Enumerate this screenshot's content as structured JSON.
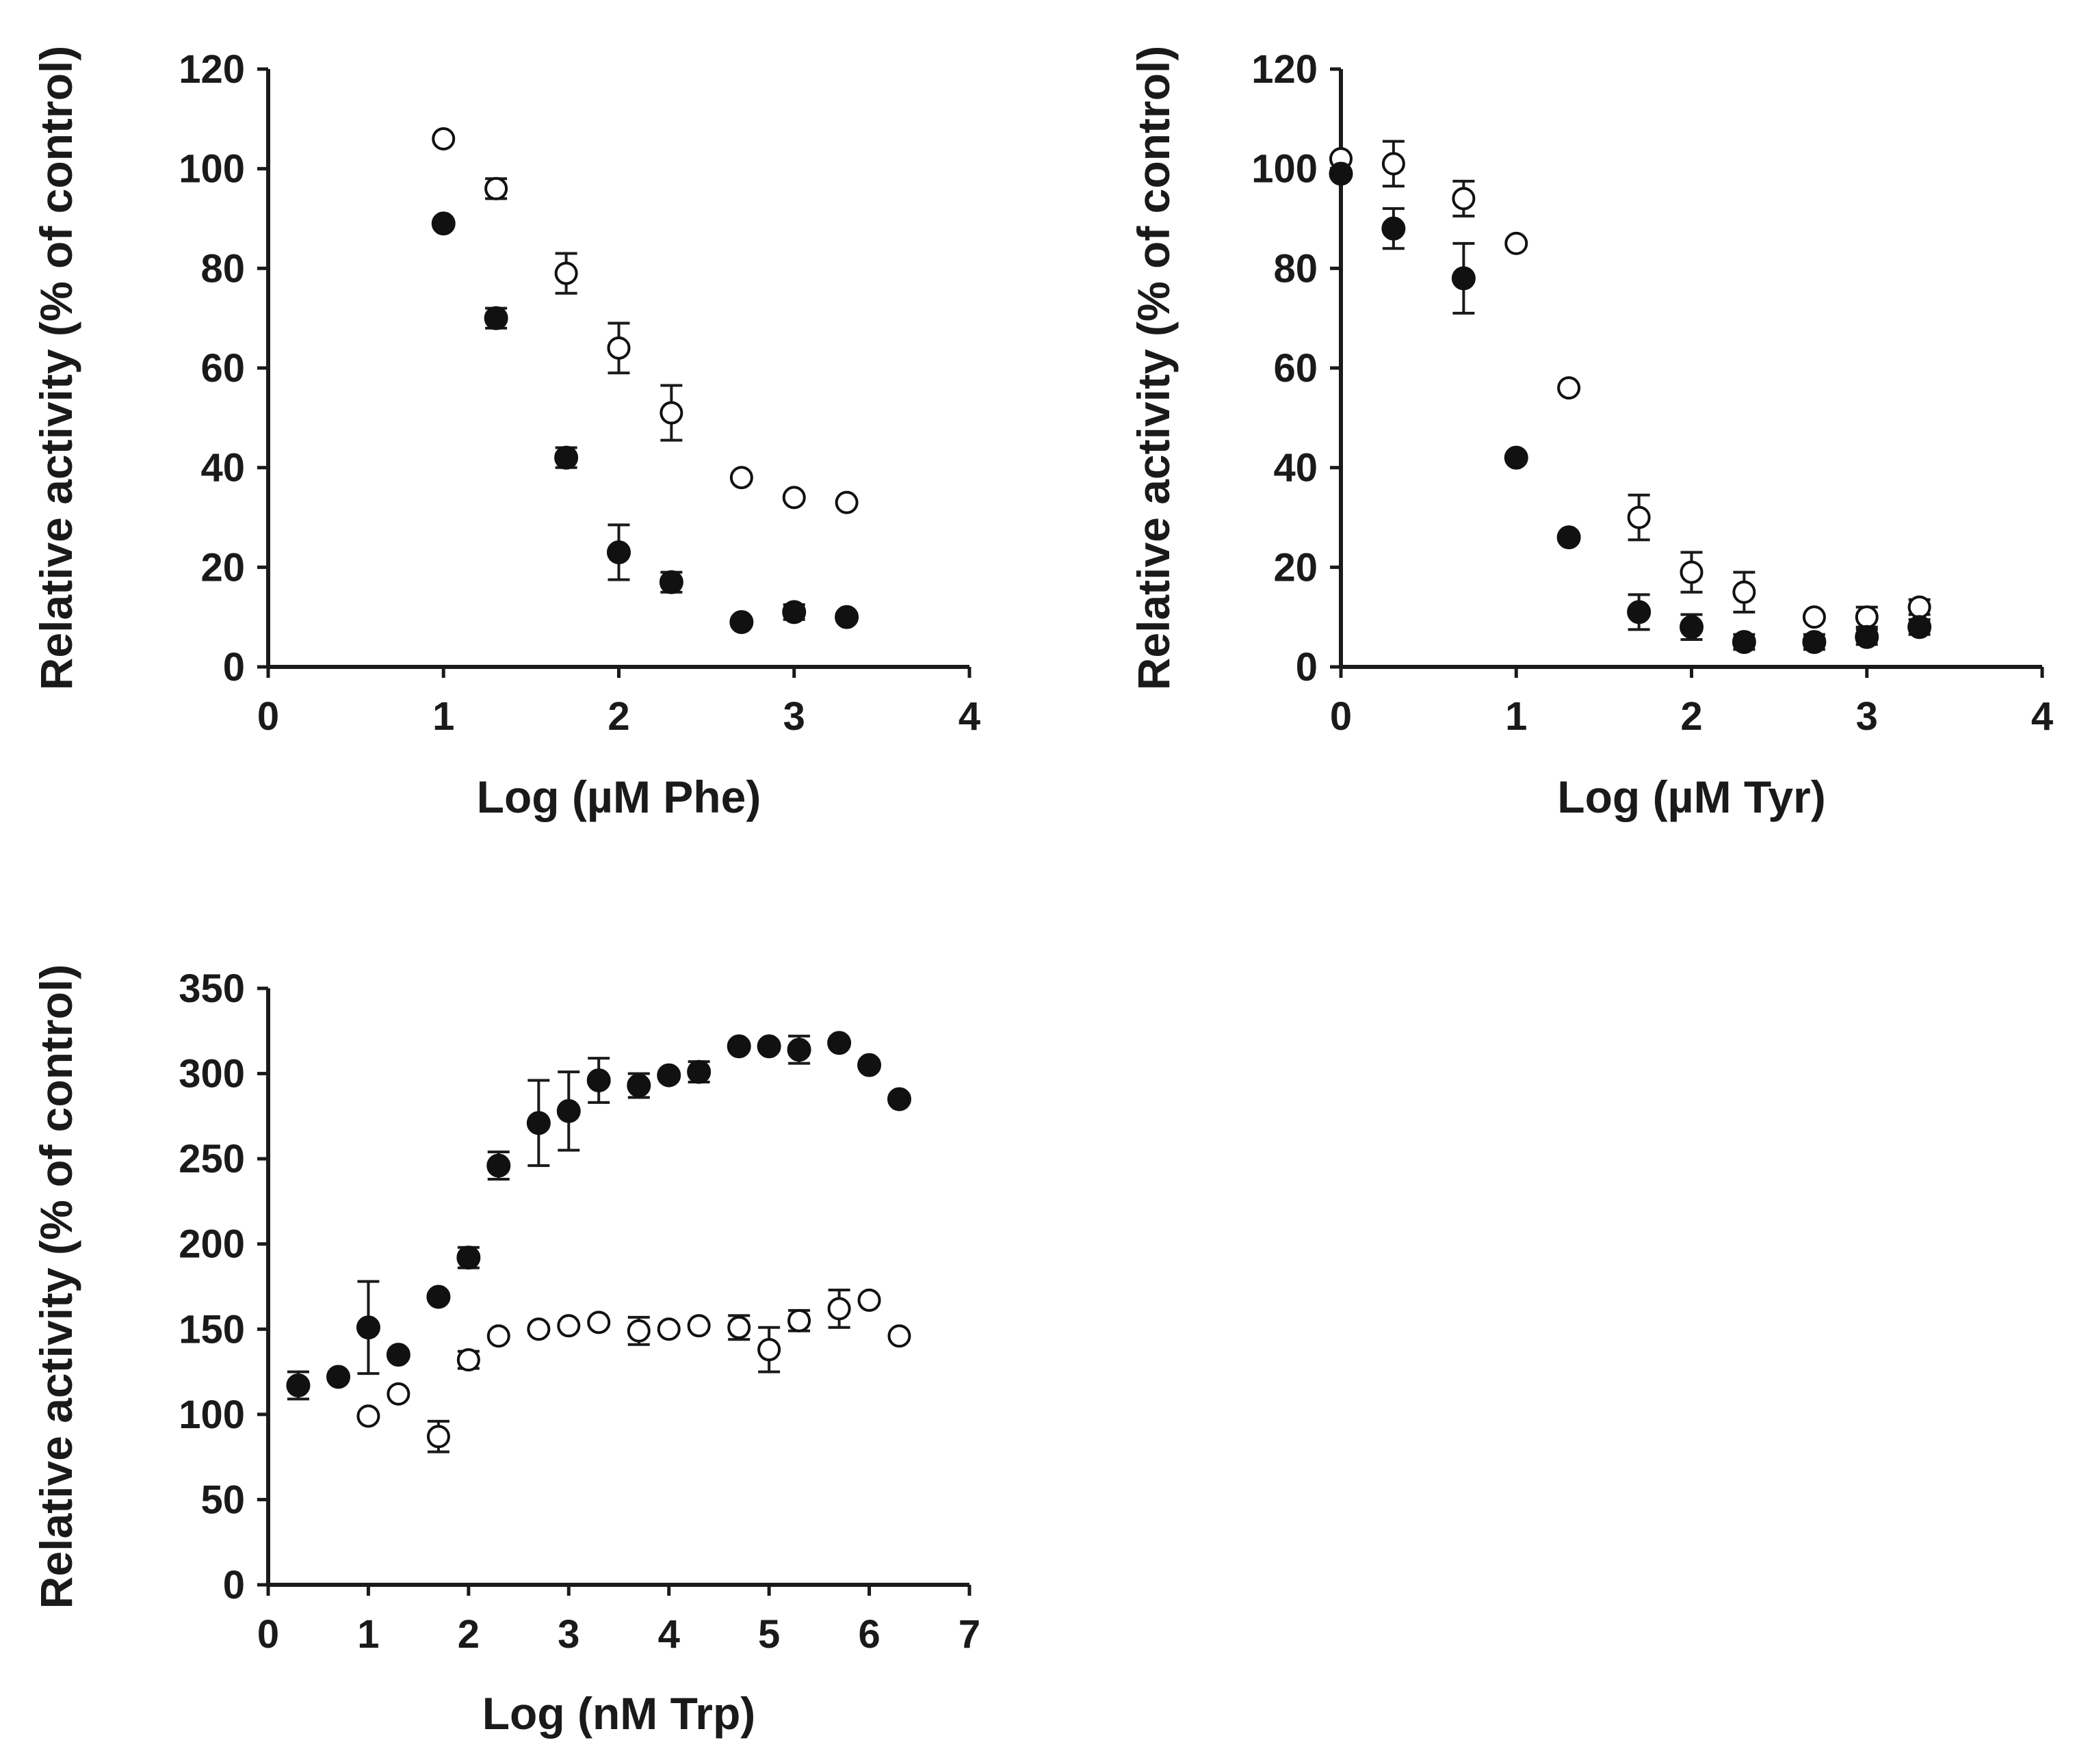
{
  "chart_data": [
    {
      "type": "scatter",
      "id": "phe",
      "xlabel": "Log (µM Phe)",
      "ylabel": "Relative activity (% of control)",
      "xlim": [
        0,
        4
      ],
      "ylim": [
        0,
        120
      ],
      "xticks": [
        0,
        1,
        2,
        3,
        4
      ],
      "yticks": [
        0,
        20,
        40,
        60,
        80,
        100,
        120
      ],
      "series": [
        {
          "name": "filled",
          "marker": "filled-circle",
          "x": [
            1,
            1.3,
            1.7,
            2,
            2.3,
            2.7,
            3,
            3.3
          ],
          "y": [
            89,
            70,
            42,
            23,
            17,
            9,
            11,
            10
          ],
          "err": [
            0,
            2,
            2,
            5.5,
            2,
            0,
            1.5,
            0
          ]
        },
        {
          "name": "open",
          "marker": "open-circle",
          "x": [
            1,
            1.3,
            1.7,
            2,
            2.3,
            2.7,
            3,
            3.3
          ],
          "y": [
            106,
            96,
            79,
            64,
            51,
            38,
            34,
            33
          ],
          "err": [
            0,
            2,
            4,
            5,
            5.5,
            0,
            0,
            0
          ]
        }
      ]
    },
    {
      "type": "scatter",
      "id": "tyr",
      "xlabel": "Log (µM Tyr)",
      "ylabel": "Relative activity (% of control)",
      "xlim": [
        0,
        4
      ],
      "ylim": [
        0,
        120
      ],
      "xticks": [
        0,
        1,
        2,
        3,
        4
      ],
      "yticks": [
        0,
        20,
        40,
        60,
        80,
        100,
        120
      ],
      "series": [
        {
          "name": "filled",
          "marker": "filled-circle",
          "x": [
            0,
            0.3,
            0.7,
            1,
            1.3,
            1.7,
            2,
            2.3,
            2.7,
            3,
            3.3
          ],
          "y": [
            99,
            88,
            78,
            42,
            26,
            11,
            8,
            5,
            5,
            6,
            8
          ],
          "err": [
            0,
            4,
            7,
            0,
            0,
            3.5,
            2.5,
            1.5,
            1.5,
            1.5,
            1.5
          ]
        },
        {
          "name": "open",
          "marker": "open-circle",
          "x": [
            0,
            0.3,
            0.7,
            1,
            1.3,
            1.7,
            2,
            2.3,
            2.7,
            3,
            3.3
          ],
          "y": [
            102,
            101,
            94,
            85,
            56,
            30,
            19,
            15,
            10,
            10,
            12
          ],
          "err": [
            0,
            4.5,
            3.5,
            0,
            0,
            4.5,
            4,
            4,
            0,
            2,
            1.5
          ]
        }
      ]
    },
    {
      "type": "scatter",
      "id": "trp",
      "xlabel": "Log (nM Trp)",
      "ylabel": "Relative activity (% of control)",
      "xlim": [
        0,
        7
      ],
      "ylim": [
        0,
        350
      ],
      "xticks": [
        0,
        1,
        2,
        3,
        4,
        5,
        6,
        7
      ],
      "yticks": [
        0,
        50,
        100,
        150,
        200,
        250,
        300,
        350
      ],
      "series": [
        {
          "name": "filled",
          "marker": "filled-circle",
          "x": [
            0.3,
            0.7,
            1,
            1.3,
            1.7,
            2,
            2.3,
            2.7,
            3,
            3.3,
            3.7,
            4,
            4.3,
            4.7,
            5,
            5.3,
            5.7,
            6,
            6.3
          ],
          "y": [
            117,
            122,
            151,
            135,
            169,
            192,
            246,
            271,
            278,
            296,
            293,
            299,
            301,
            316,
            316,
            314,
            318,
            305,
            285
          ],
          "err": [
            8,
            0,
            27,
            0,
            0,
            6,
            8,
            25,
            23,
            13,
            7,
            0,
            6,
            0,
            0,
            8,
            0,
            0,
            0
          ]
        },
        {
          "name": "open",
          "marker": "open-circle",
          "x": [
            1,
            1.3,
            1.7,
            2,
            2.3,
            2.7,
            3,
            3.3,
            3.7,
            4,
            4.3,
            4.7,
            5,
            5.3,
            5.7,
            6,
            6.3
          ],
          "y": [
            99,
            112,
            87,
            132,
            146,
            150,
            152,
            154,
            149,
            150,
            152,
            151,
            138,
            155,
            162,
            167,
            146
          ],
          "err": [
            0,
            0,
            9,
            5,
            0,
            0,
            0,
            0,
            8,
            0,
            0,
            7,
            13,
            6,
            11,
            0,
            0
          ]
        }
      ]
    }
  ]
}
